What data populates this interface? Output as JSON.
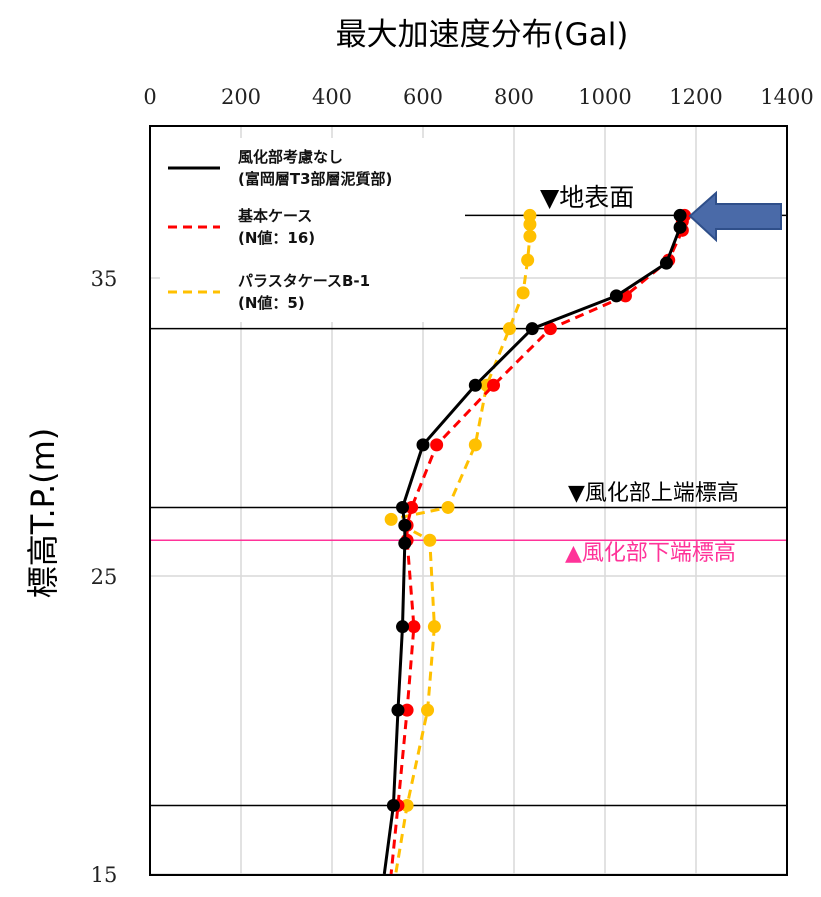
{
  "chart_data": {
    "type": "line",
    "title": "最大加速度分布(Gal)",
    "ylabel": "標高T.P.(m)",
    "xlim": [
      0,
      1400
    ],
    "ylim": [
      15,
      39
    ],
    "x_ticks": [
      "0",
      "200",
      "400",
      "600",
      "800",
      "1000",
      "1200",
      "1400"
    ],
    "y_ticks": [
      "35",
      "25",
      "15"
    ],
    "grid": true,
    "legend_position": "top-left",
    "series": [
      {
        "legend_line1": "風化部考慮なし",
        "legend_line2": "(富岡層T3部層泥質部)",
        "color": "#000000",
        "dash": "solid",
        "points": [
          [
            1165,
            37.1
          ],
          [
            1165,
            36.7
          ],
          [
            1135,
            35.5
          ],
          [
            1025,
            34.4
          ],
          [
            840,
            33.3
          ],
          [
            715,
            31.4
          ],
          [
            600,
            29.4
          ],
          [
            555,
            27.3
          ],
          [
            560,
            26.7
          ],
          [
            560,
            26.1
          ],
          [
            555,
            23.3
          ],
          [
            545,
            20.5
          ],
          [
            535,
            17.3
          ],
          [
            515,
            15.0
          ]
        ]
      },
      {
        "legend_line1": "基本ケース",
        "legend_line2": "(N値：16)",
        "color": "#ff0000",
        "dash": "dashed",
        "points": [
          [
            1175,
            37.1
          ],
          [
            1170,
            36.9
          ],
          [
            1170,
            36.6
          ],
          [
            1140,
            35.6
          ],
          [
            1045,
            34.4
          ],
          [
            880,
            33.3
          ],
          [
            755,
            31.4
          ],
          [
            630,
            29.4
          ],
          [
            575,
            27.3
          ],
          [
            565,
            26.7
          ],
          [
            565,
            26.2
          ],
          [
            580,
            23.3
          ],
          [
            565,
            20.5
          ],
          [
            545,
            17.3
          ],
          [
            530,
            15.0
          ]
        ]
      },
      {
        "legend_line1": "パラスタケースB-1",
        "legend_line2": "(N値：5)",
        "color": "#ffc000",
        "dash": "dashed",
        "points": [
          [
            835,
            37.1
          ],
          [
            835,
            36.8
          ],
          [
            835,
            36.4
          ],
          [
            830,
            35.6
          ],
          [
            820,
            34.5
          ],
          [
            790,
            33.3
          ],
          [
            740,
            31.4
          ],
          [
            715,
            29.4
          ],
          [
            655,
            27.3
          ],
          [
            530,
            26.9
          ],
          [
            615,
            26.2
          ],
          [
            625,
            23.3
          ],
          [
            610,
            20.5
          ],
          [
            565,
            17.3
          ],
          [
            540,
            15.0
          ]
        ]
      }
    ],
    "reference_lines": [
      {
        "label": "▼地表面",
        "y": 37.1,
        "color": "#000000"
      },
      {
        "label": "",
        "y": 33.3,
        "color": "#000000"
      },
      {
        "label": "▼風化部上端標高",
        "y": 27.3,
        "color": "#000000"
      },
      {
        "label": "▲風化部下端標高",
        "y": 26.2,
        "color": "#ff3399"
      },
      {
        "label": "",
        "y": 17.3,
        "color": "#000000"
      }
    ],
    "arrow_color": "#4a6aa8"
  }
}
